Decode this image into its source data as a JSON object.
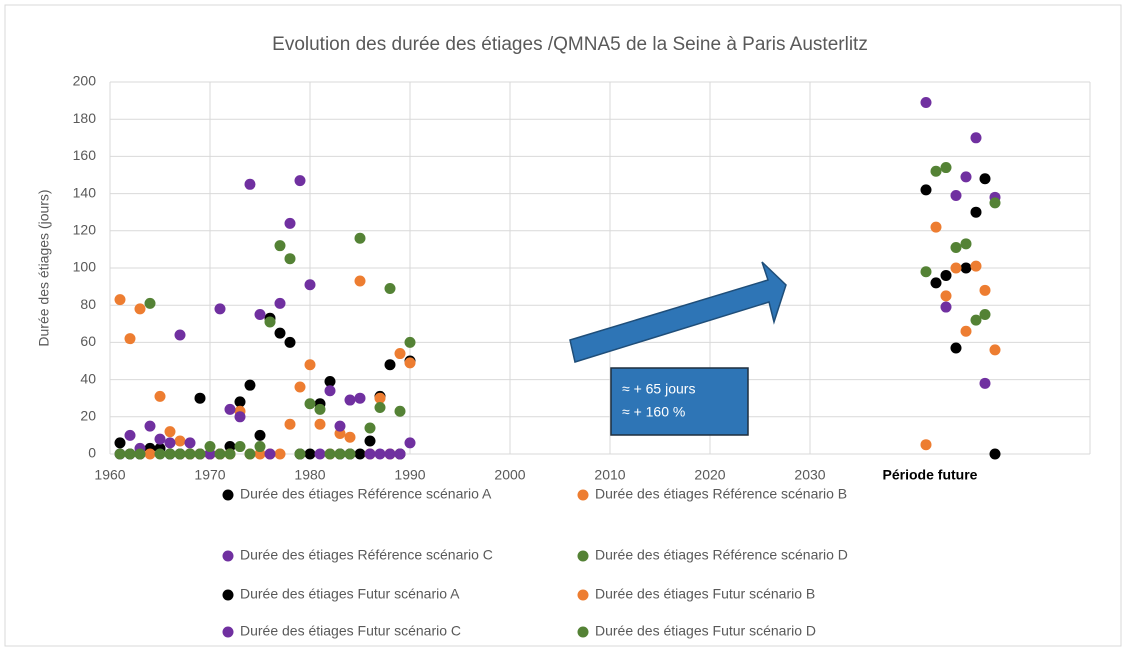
{
  "chart_data": {
    "type": "scatter",
    "title": "Evolution des durée des étiages /QMNA5 de la Seine à Paris Austerlitz",
    "y_label": "Durée des étiages (jours)",
    "annotations": [
      "≈ + 65 jours",
      "≈ + 160 %"
    ],
    "xlim": [
      1960,
      2058
    ],
    "xticks": [
      1960,
      1970,
      1980,
      1990,
      2000,
      2010,
      2020,
      2030,
      {
        "value": 2042,
        "label": "Période future"
      }
    ],
    "ylim": [
      0,
      200
    ],
    "yticks": [
      0,
      20,
      40,
      60,
      80,
      100,
      120,
      140,
      160,
      180,
      200
    ],
    "grid": true,
    "series": [
      {
        "name": "Durée des étiages Référence scénario A",
        "color": "#000000",
        "x": [
          1961,
          1962,
          1963,
          1964,
          1965,
          1966,
          1967,
          1968,
          1969,
          1970,
          1971,
          1972,
          1973,
          1974,
          1975,
          1976,
          1977,
          1978,
          1979,
          1980,
          1981,
          1982,
          1983,
          1984,
          1985,
          1986,
          1987,
          1988,
          1989,
          1990
        ],
        "values": [
          6,
          0,
          0,
          3,
          3,
          0,
          0,
          0,
          30,
          0,
          0,
          4,
          28,
          37,
          10,
          73,
          65,
          60,
          0,
          0,
          27,
          39,
          0,
          0,
          0,
          7,
          31,
          48,
          0,
          50
        ]
      },
      {
        "name": "Durée des étiages Référence scénario B",
        "color": "#ed7d31",
        "x": [
          1961,
          1962,
          1963,
          1964,
          1965,
          1966,
          1967,
          1968,
          1969,
          1970,
          1971,
          1972,
          1973,
          1974,
          1975,
          1976,
          1977,
          1978,
          1979,
          1980,
          1981,
          1982,
          1983,
          1984,
          1985,
          1986,
          1987,
          1988,
          1989,
          1990
        ],
        "values": [
          83,
          62,
          78,
          0,
          31,
          12,
          7,
          0,
          0,
          0,
          0,
          0,
          23,
          0,
          0,
          0,
          0,
          16,
          36,
          48,
          16,
          0,
          11,
          9,
          93,
          0,
          30,
          0,
          54,
          49
        ]
      },
      {
        "name": "Durée des étiages Référence scénario C",
        "color": "#7030a0",
        "x": [
          1961,
          1962,
          1963,
          1964,
          1965,
          1966,
          1967,
          1968,
          1969,
          1970,
          1971,
          1972,
          1973,
          1974,
          1975,
          1976,
          1977,
          1978,
          1979,
          1980,
          1981,
          1982,
          1983,
          1984,
          1985,
          1986,
          1987,
          1988,
          1989,
          1990
        ],
        "values": [
          0,
          10,
          3,
          15,
          8,
          6,
          64,
          6,
          0,
          0,
          78,
          24,
          20,
          145,
          75,
          0,
          81,
          124,
          147,
          91,
          0,
          34,
          15,
          29,
          30,
          0,
          0,
          0,
          0,
          6
        ]
      },
      {
        "name": "Durée des étiages Référence scénario D",
        "color": "#548235",
        "x": [
          1961,
          1962,
          1963,
          1964,
          1965,
          1966,
          1967,
          1968,
          1969,
          1970,
          1971,
          1972,
          1973,
          1974,
          1975,
          1976,
          1977,
          1978,
          1979,
          1980,
          1981,
          1982,
          1983,
          1984,
          1985,
          1986,
          1987,
          1988,
          1989,
          1990
        ],
        "values": [
          0,
          0,
          0,
          81,
          0,
          0,
          0,
          0,
          0,
          4,
          0,
          0,
          4,
          0,
          4,
          71,
          112,
          105,
          0,
          27,
          24,
          0,
          0,
          0,
          116,
          14,
          25,
          89,
          23,
          60
        ]
      },
      {
        "name": "Durée des étiages Futur scénario A",
        "color": "#000000",
        "x": [
          2041.6,
          2042.6,
          2043.6,
          2044.6,
          2045.6,
          2046.6,
          2047.5,
          2048.5
        ],
        "values": [
          142,
          92,
          96,
          57,
          100,
          130,
          148,
          0
        ]
      },
      {
        "name": "Durée des étiages Futur scénario B",
        "color": "#ed7d31",
        "x": [
          2041.6,
          2042.6,
          2043.6,
          2044.6,
          2045.6,
          2046.6,
          2047.5,
          2048.5
        ],
        "values": [
          5,
          122,
          85,
          100,
          66,
          101,
          88,
          56
        ]
      },
      {
        "name": "Durée des étiages Futur scénario C",
        "color": "#7030a0",
        "x": [
          2041.6,
          2043.6,
          2044.6,
          2045.6,
          2046.6,
          2047.5,
          2048.5
        ],
        "values": [
          189,
          79,
          139,
          149,
          170,
          38,
          138
        ]
      },
      {
        "name": "Durée des étiages Futur scénario D",
        "color": "#548235",
        "x": [
          2041.6,
          2042.6,
          2043.6,
          2044.6,
          2045.6,
          2046.6,
          2047.5,
          2048.5
        ],
        "values": [
          98,
          152,
          154,
          111,
          113,
          72,
          75,
          135
        ]
      }
    ]
  }
}
